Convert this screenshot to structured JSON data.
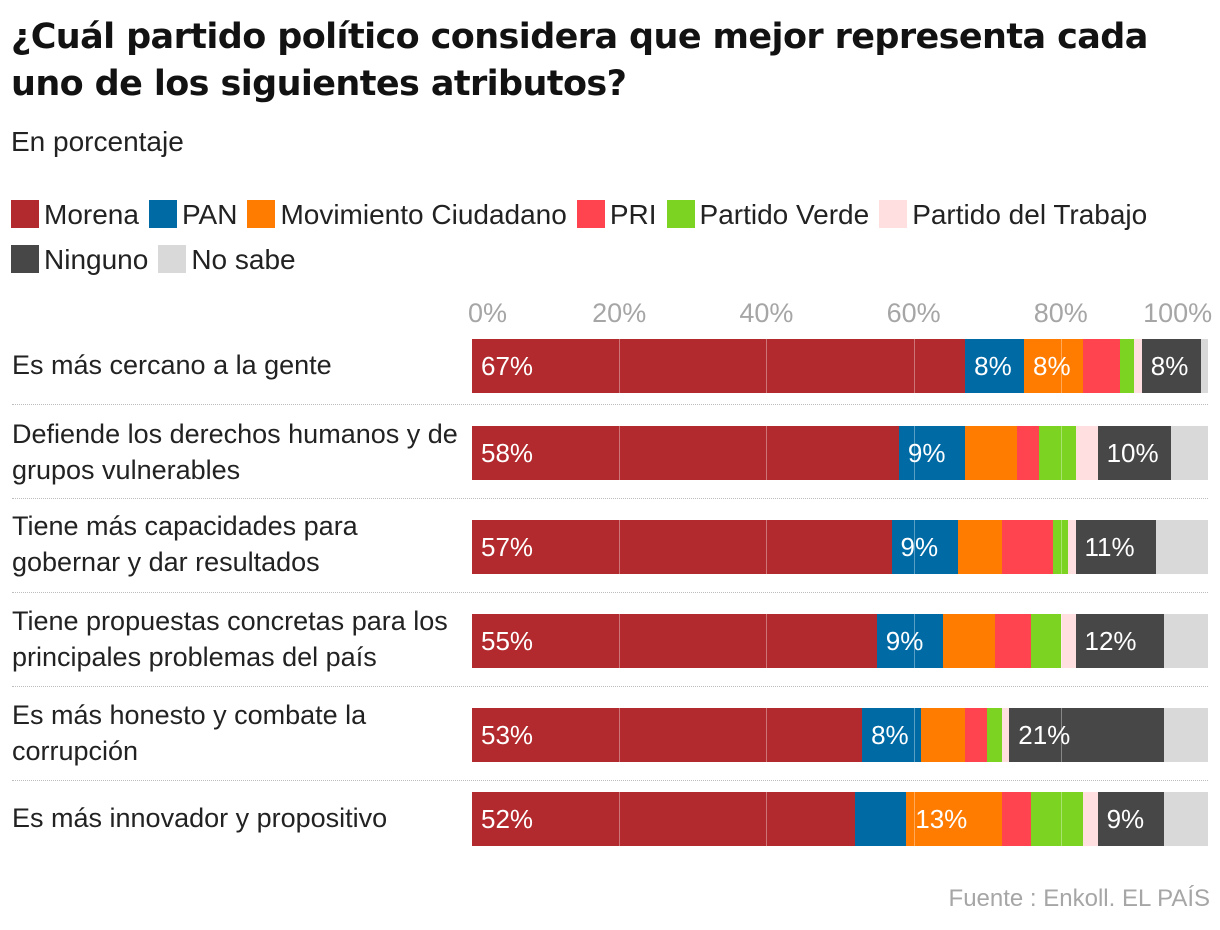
{
  "title": "¿Cuál partido político considera que mejor representa cada uno de los siguientes atributos?",
  "subtitle": "En porcentaje",
  "source": "Fuente : Enkoll. EL PAÍS",
  "chart_data": {
    "type": "bar",
    "orientation": "horizontal",
    "stacked": true,
    "title": "¿Cuál partido político considera que mejor representa cada uno de los siguientes atributos?",
    "subtitle": "En porcentaje",
    "xlim": [
      0,
      100
    ],
    "x_ticks": [
      "0%",
      "20%",
      "40%",
      "60%",
      "80%",
      "100%"
    ],
    "legend_position": "top",
    "categories": [
      "Es más cercano a la gente",
      "Defiende los derechos humanos y de grupos vulnerables",
      "Tiene más capacidades para gobernar y dar resultados",
      "Tiene propuestas concretas para los principales problemas del país",
      "Es más honesto y combate la corrupción",
      "Es más innovador y propositivo"
    ],
    "series": [
      {
        "name": "Morena",
        "color": "#b32a2e",
        "values": [
          67,
          58,
          57,
          55,
          53,
          52
        ],
        "labels": [
          "67%",
          "58%",
          "57%",
          "55%",
          "53%",
          "52%"
        ]
      },
      {
        "name": "PAN",
        "color": "#006aa5",
        "values": [
          8,
          9,
          9,
          9,
          8,
          7
        ],
        "labels": [
          "8%",
          "9%",
          "9%",
          "9%",
          "8%",
          ""
        ]
      },
      {
        "name": "Movimiento Ciudadano",
        "color": "#ff7c00",
        "values": [
          8,
          7,
          6,
          7,
          6,
          13
        ],
        "labels": [
          "8%",
          "",
          "",
          "",
          "",
          "13%"
        ]
      },
      {
        "name": "PRI",
        "color": "#ff444f",
        "values": [
          5,
          3,
          7,
          5,
          3,
          4
        ],
        "labels": [
          "",
          "",
          "",
          "",
          "",
          ""
        ]
      },
      {
        "name": "Partido Verde",
        "color": "#7cd321",
        "values": [
          2,
          5,
          2,
          4,
          2,
          7
        ],
        "labels": [
          "",
          "",
          "",
          "",
          "",
          ""
        ]
      },
      {
        "name": "Partido del Trabajo",
        "color": "#ffdfdf",
        "values": [
          1,
          3,
          1,
          2,
          1,
          2
        ],
        "labels": [
          "",
          "",
          "",
          "",
          "",
          ""
        ]
      },
      {
        "name": "Ninguno",
        "color": "#474747",
        "values": [
          8,
          10,
          11,
          12,
          21,
          9
        ],
        "labels": [
          "8%",
          "10%",
          "11%",
          "12%",
          "21%",
          "9%"
        ]
      },
      {
        "name": "No sabe",
        "color": "#d9d9d9",
        "values": [
          1,
          5,
          7,
          6,
          6,
          6
        ],
        "labels": [
          "",
          "",
          "",
          "",
          "",
          ""
        ]
      }
    ]
  }
}
